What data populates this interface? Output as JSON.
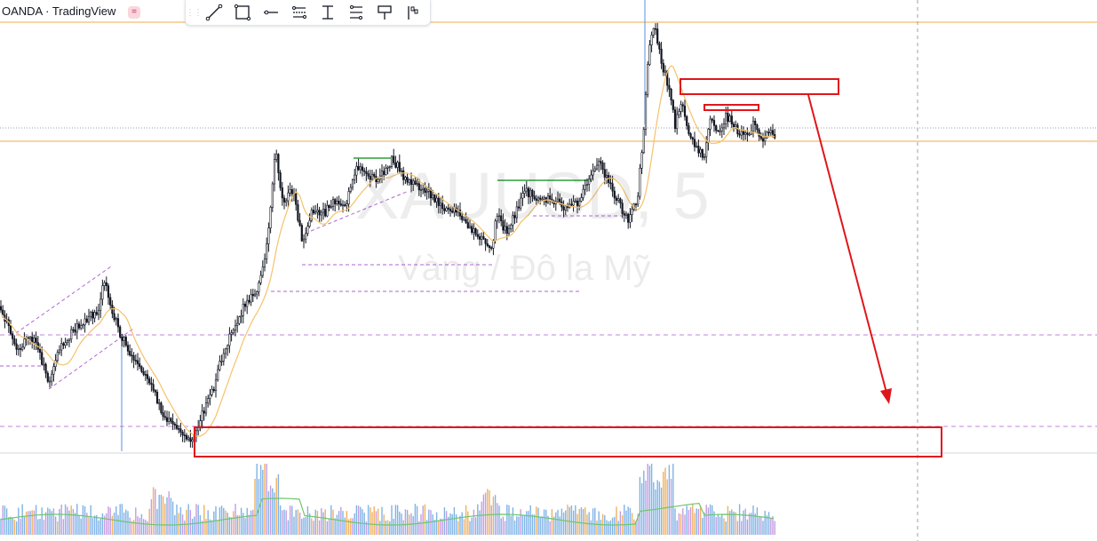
{
  "header": {
    "brand": "OANDA · TradingView",
    "badge_icon": "equals-icon"
  },
  "toolbar": {
    "tools": [
      {
        "name": "trend-line-icon"
      },
      {
        "name": "rectangle-icon"
      },
      {
        "name": "horizontal-ray-icon"
      },
      {
        "name": "parallel-channel-icon"
      },
      {
        "name": "vertical-range-icon"
      },
      {
        "name": "fib-retracement-icon"
      },
      {
        "name": "callout-icon"
      },
      {
        "name": "flag-icon"
      }
    ]
  },
  "watermark": {
    "symbol": "XAUUSD, 5",
    "description": "Vàng / Đô la Mỹ"
  },
  "colors": {
    "candle": "#131722",
    "ma": "#f5c26b",
    "annotation": "#e0161b",
    "hline": "#f0a94a",
    "support_dash": "#b266d6",
    "green_level": "#2e9e3a",
    "volume_blue": "#7fb3e6",
    "volume_orange": "#f0b060",
    "volume_purple": "#c49ce0",
    "volume_ma": "#6fc56f"
  }
}
